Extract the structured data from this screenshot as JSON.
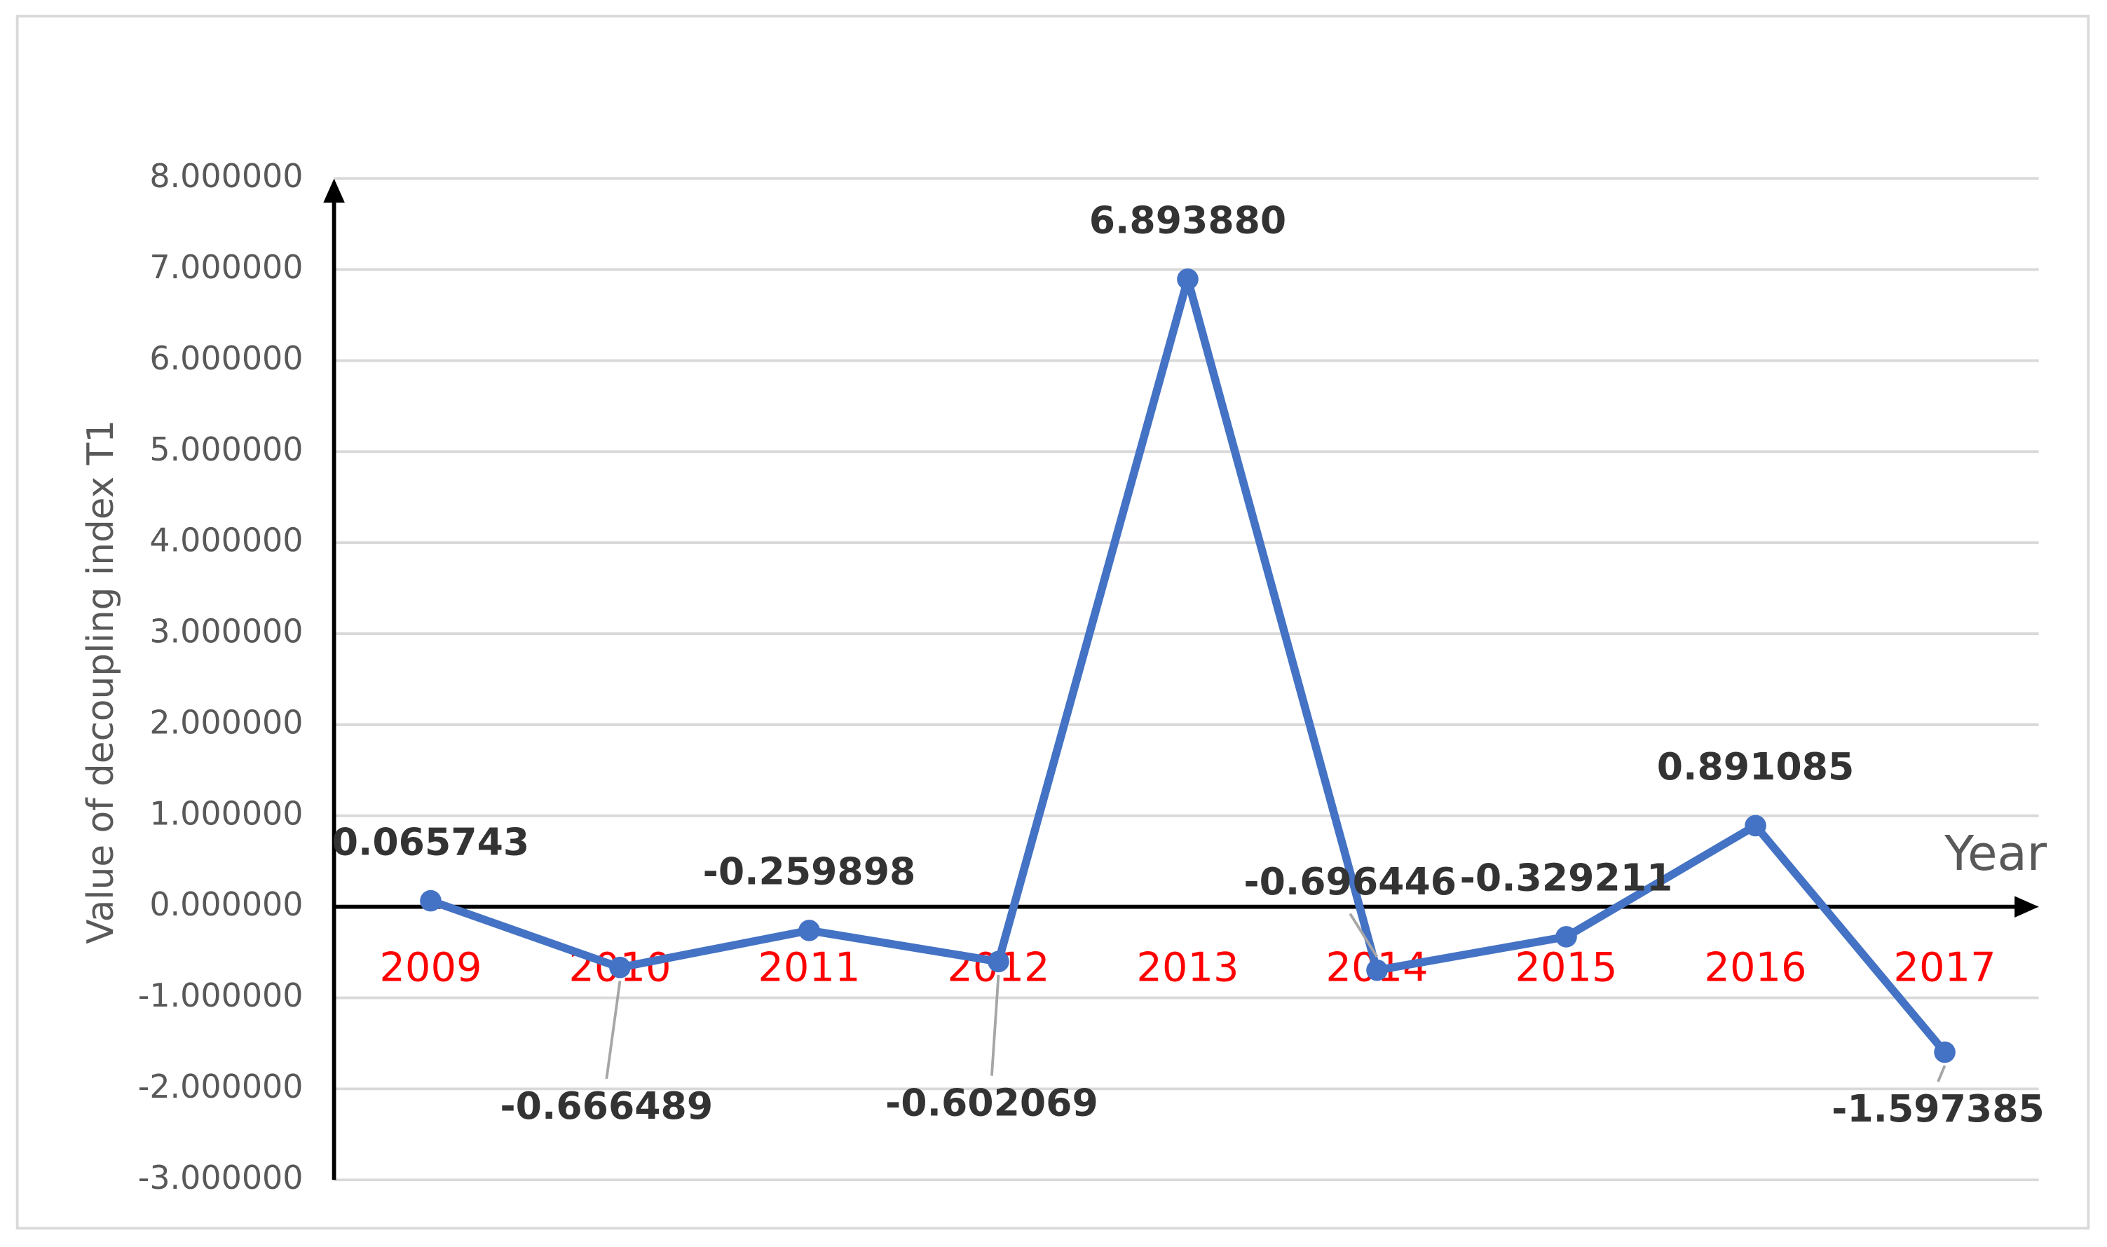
{
  "chart_data": {
    "type": "line",
    "y_label": "Value of decoupling index T1",
    "x_label": "Year",
    "categories": [
      "2009",
      "2010",
      "2011",
      "2012",
      "2013",
      "2014",
      "2015",
      "2016",
      "2017"
    ],
    "series": [
      {
        "name": "Value of decoupling index T1",
        "color": "#4472c4",
        "values": [
          0.065743,
          -0.666489,
          -0.259898,
          -0.602069,
          6.89388,
          -0.696446,
          -0.329211,
          0.891085,
          -1.597385
        ],
        "value_labels": [
          "0.065743",
          "-0.666489",
          "-0.259898",
          "-0.602069",
          "6.893880",
          "-0.696446",
          "-0.329211",
          "0.891085",
          "-1.597385"
        ]
      }
    ],
    "ylim": [
      -3,
      8
    ],
    "yticks": [
      {
        "value": -3,
        "label": "-3.000000"
      },
      {
        "value": -2,
        "label": "-2.000000"
      },
      {
        "value": -1,
        "label": "-1.000000"
      },
      {
        "value": 0,
        "label": "0.000000"
      },
      {
        "value": 1,
        "label": "1.000000"
      },
      {
        "value": 2,
        "label": "2.000000"
      },
      {
        "value": 3,
        "label": "3.000000"
      },
      {
        "value": 4,
        "label": "4.000000"
      },
      {
        "value": 5,
        "label": "5.000000"
      },
      {
        "value": 6,
        "label": "6.000000"
      },
      {
        "value": 7,
        "label": "7.000000"
      },
      {
        "value": 8,
        "label": "8.000000"
      }
    ],
    "category_label_color": "#ff0000",
    "grid": true
  }
}
